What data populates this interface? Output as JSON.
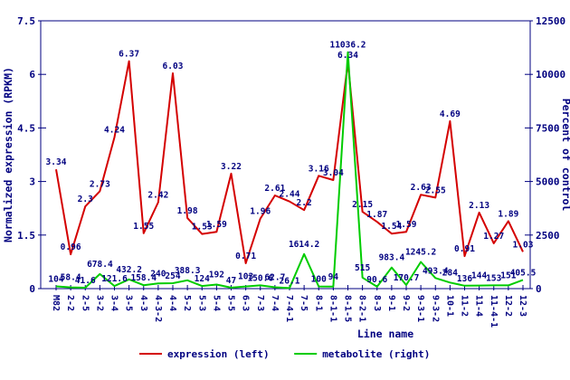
{
  "chart_data": {
    "type": "line",
    "title": "",
    "categories": [
      "M82",
      "2-2",
      "2-5",
      "3-2",
      "3-4",
      "3-5",
      "4-3",
      "4-3-2",
      "4-4",
      "5-2",
      "5-3",
      "5-4",
      "5-5",
      "6-3",
      "7-3",
      "7-4",
      "7-4-1",
      "7-5",
      "8-1",
      "8-1-1",
      "8-1-5",
      "8-2-1",
      "8-3",
      "9-1",
      "9-2",
      "9-3-1",
      "9-3-2",
      "10-1",
      "11-2",
      "11-4",
      "11-4-1",
      "12-2",
      "12-3"
    ],
    "series": [
      {
        "name": "expression (left)",
        "axis": "left",
        "color": "#d40000",
        "values": [
          3.34,
          0.96,
          2.3,
          2.73,
          4.24,
          6.37,
          1.55,
          2.42,
          6.03,
          1.98,
          1.53,
          1.59,
          3.22,
          0.71,
          1.96,
          2.61,
          2.44,
          2.2,
          3.16,
          3.04,
          6.34,
          2.15,
          1.87,
          1.54,
          1.59,
          2.63,
          2.55,
          4.69,
          0.91,
          2.13,
          1.27,
          1.89,
          1.03
        ]
      },
      {
        "name": "metabolite (right)",
        "axis": "right",
        "color": "#00cc00",
        "values": [
          104,
          58.4,
          41.6,
          678.4,
          121.6,
          432.2,
          158.4,
          240,
          254,
          388.3,
          124,
          192,
          47,
          103,
          150.6,
          62.7,
          26.1,
          1614.2,
          100,
          94,
          11036.2,
          515,
          90.6,
          983.4,
          170.7,
          1245.2,
          493.4,
          284,
          136,
          144,
          153,
          151,
          405.5
        ]
      }
    ],
    "axes": {
      "left": {
        "title": "Normalized expression (RPKM)",
        "min": 0,
        "max": 7.5,
        "ticks": [
          "0",
          "1.5",
          "3",
          "4.5",
          "6",
          "7.5"
        ]
      },
      "right": {
        "title": "Percent of control",
        "min": 0,
        "max": 12500,
        "ticks": [
          "0",
          "2500",
          "5000",
          "7500",
          "10000",
          "12500"
        ]
      },
      "x": {
        "title": "Line name"
      }
    },
    "legend": {
      "position": "bottom",
      "items": [
        {
          "label": "expression (left)",
          "color": "#d40000"
        },
        {
          "label": "metabolite (right)",
          "color": "#00cc00"
        }
      ]
    },
    "grid": false,
    "point_labels": true,
    "text_color": "#000080",
    "background": "#ffffff"
  }
}
